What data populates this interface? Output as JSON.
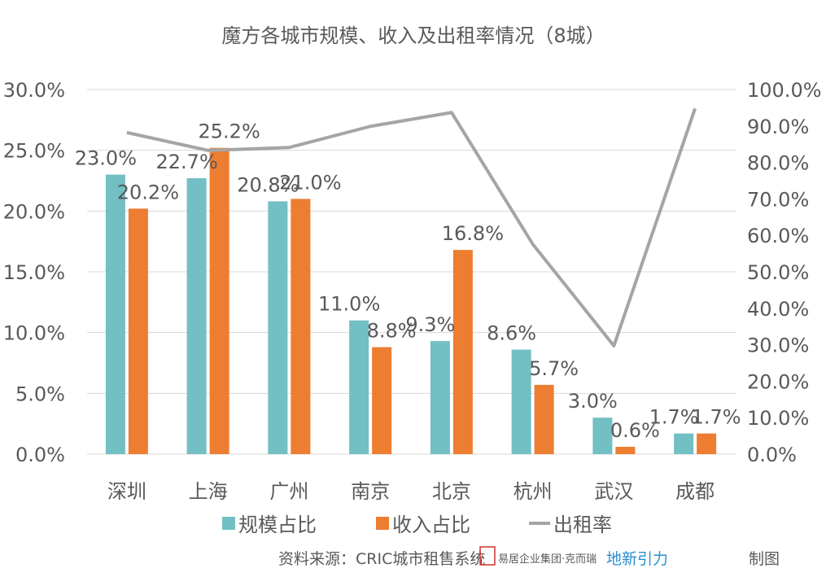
{
  "chart_data": {
    "type": "bar",
    "title": "魔方各城市规模、收入及出租率情况（8城）",
    "categories": [
      "深圳",
      "上海",
      "广州",
      "南京",
      "北京",
      "杭州",
      "武汉",
      "成都"
    ],
    "series": [
      {
        "name": "规模占比",
        "type": "bar",
        "axis": "left",
        "color": "#72BFC4",
        "values": [
          23.0,
          22.7,
          20.8,
          11.0,
          9.3,
          8.6,
          3.0,
          1.7
        ],
        "labels": [
          "23.0%",
          "22.7%",
          "20.8%",
          "11.0%",
          "9.3%",
          "8.6%",
          "3.0%",
          "1.7%"
        ]
      },
      {
        "name": "收入占比",
        "type": "bar",
        "axis": "left",
        "color": "#ED7D31",
        "values": [
          20.2,
          25.2,
          21.0,
          8.8,
          16.8,
          5.7,
          0.6,
          1.7
        ],
        "labels": [
          "20.2%",
          "25.2%",
          "21.0%",
          "8.8%",
          "16.8%",
          "5.7%",
          "0.6%",
          "1.7%"
        ]
      },
      {
        "name": "出租率",
        "type": "line",
        "axis": "right",
        "color": "#A5A5A5",
        "values": [
          88.2,
          83.3,
          84.1,
          89.9,
          93.7,
          57.6,
          29.7,
          94.8
        ]
      }
    ],
    "left_axis": {
      "range": [
        0,
        30
      ],
      "ticks": [
        "0.0%",
        "5.0%",
        "10.0%",
        "15.0%",
        "20.0%",
        "25.0%",
        "30.0%"
      ]
    },
    "right_axis": {
      "range": [
        0,
        100
      ],
      "ticks": [
        "0.0%",
        "10.0%",
        "20.0%",
        "30.0%",
        "40.0%",
        "50.0%",
        "60.0%",
        "70.0%",
        "80.0%",
        "90.0%",
        "100.0%"
      ]
    },
    "grid": true,
    "legend_position": "bottom"
  },
  "footer": {
    "source": "资料来源：CRIC城市租售系统",
    "logo_text": "易居企业集团·克而瑞",
    "brand": "地新引力",
    "suffix": "制图"
  }
}
